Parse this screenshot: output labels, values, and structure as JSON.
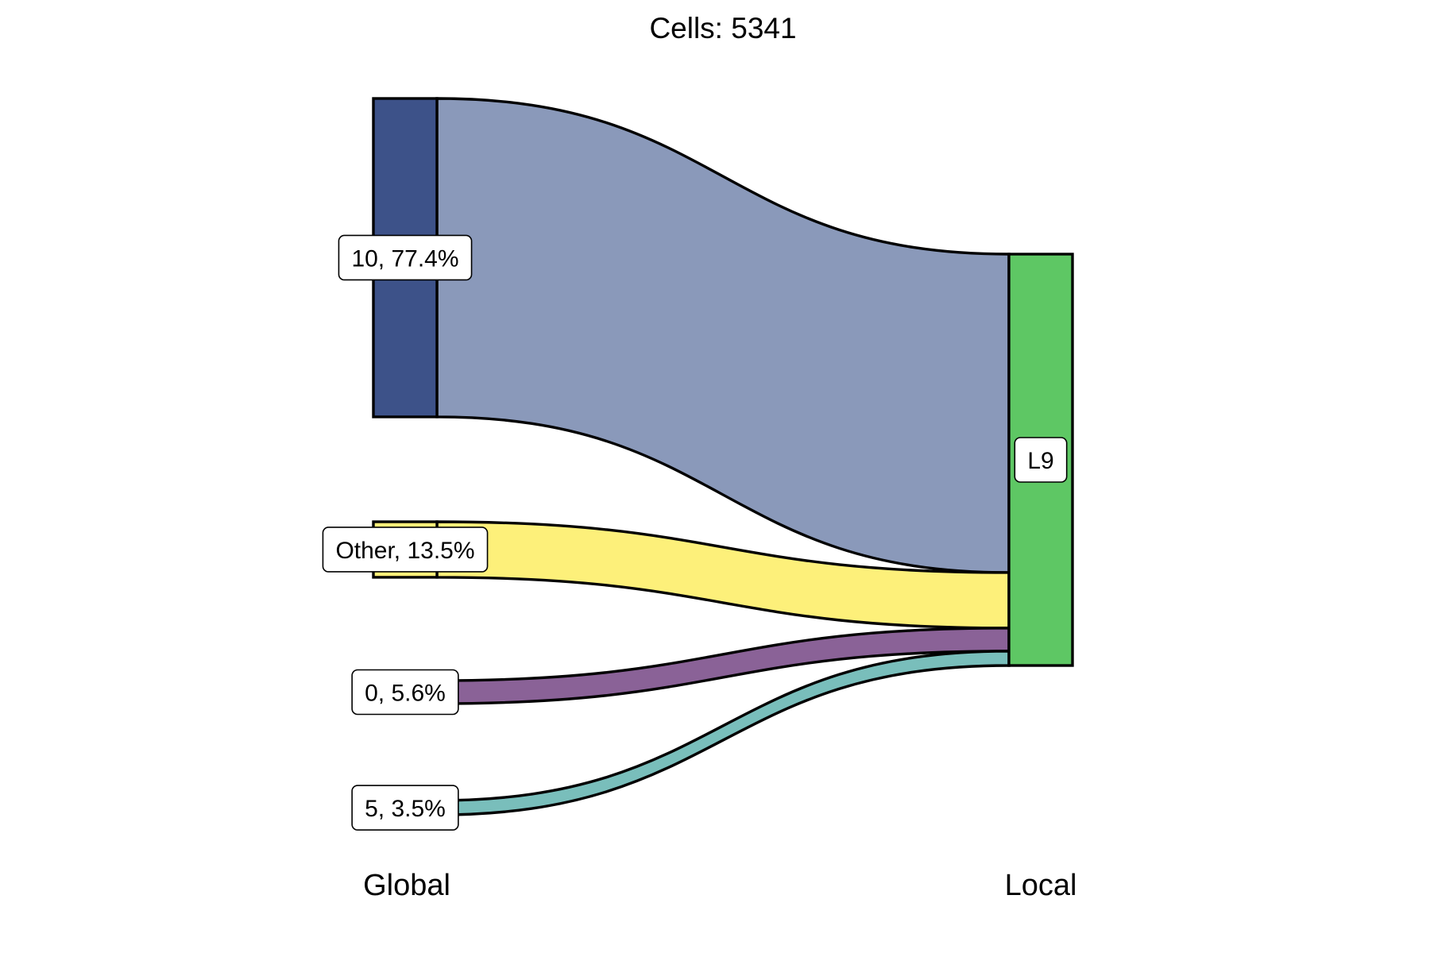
{
  "chart_data": {
    "type": "sankey",
    "title": "Cells:  5341",
    "total_cells": 5341,
    "axes": [
      {
        "name": "Global"
      },
      {
        "name": "Local"
      }
    ],
    "sources": [
      {
        "id": "10",
        "label": "10, 77.4%",
        "percent": 77.4,
        "color": "#3d5289",
        "flow_color": "#8a99ba"
      },
      {
        "id": "Other",
        "label": "Other, 13.5%",
        "percent": 13.5,
        "color": "#fdf07a",
        "flow_color": "#fdf07a"
      },
      {
        "id": "0",
        "label": "0, 5.6%",
        "percent": 5.6,
        "color": "#8a6297",
        "flow_color": "#8a6297"
      },
      {
        "id": "5",
        "label": "5, 3.5%",
        "percent": 3.5,
        "color": "#79bebb",
        "flow_color": "#79bebb"
      }
    ],
    "targets": [
      {
        "id": "L9",
        "label": "L9",
        "percent": 100,
        "color": "#5ec764"
      }
    ],
    "flows": [
      {
        "source": "10",
        "target": "L9",
        "percent": 77.4
      },
      {
        "source": "Other",
        "target": "L9",
        "percent": 13.5
      },
      {
        "source": "0",
        "target": "L9",
        "percent": 5.6
      },
      {
        "source": "5",
        "target": "L9",
        "percent": 3.5
      }
    ]
  }
}
